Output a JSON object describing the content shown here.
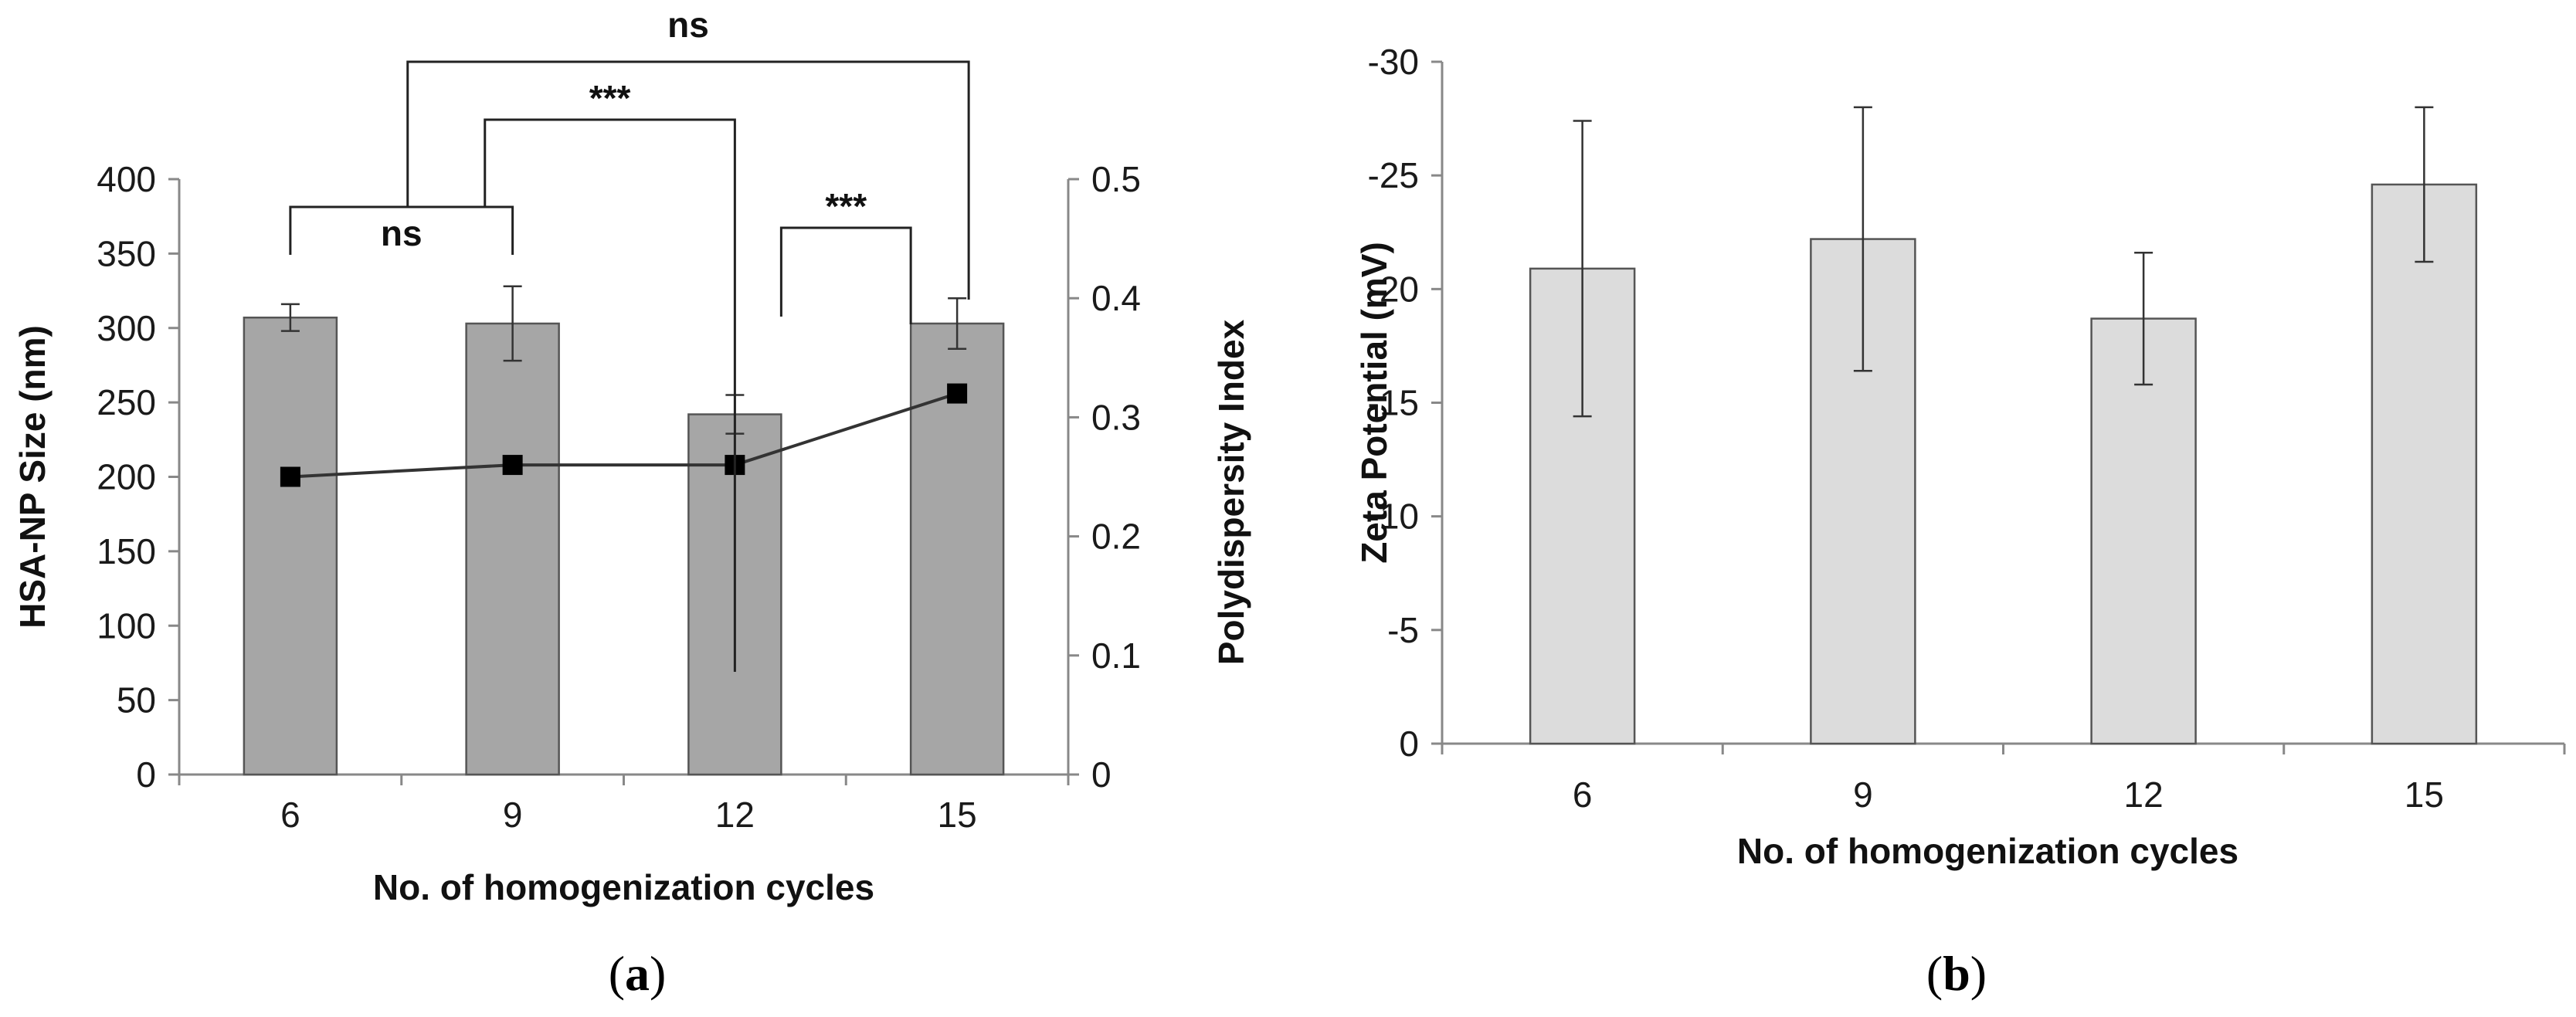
{
  "chart_data": [
    {
      "type": "bar",
      "panel": "(a)",
      "panel_label_open": "(",
      "panel_label_letter": "a",
      "panel_label_close": ")",
      "categories": [
        "6",
        "9",
        "12",
        "15"
      ],
      "xlabel": "No. of homogenization cycles",
      "ylabel": "HSA-NP Size (nm)",
      "ylabel_right": "Polydispersity Index",
      "ylim": [
        0,
        400
      ],
      "yticks": [
        "0",
        "50",
        "100",
        "150",
        "200",
        "250",
        "300",
        "350",
        "400"
      ],
      "ylim_right": [
        0,
        0.5
      ],
      "yticks_right": [
        "0",
        "0.1",
        "0.2",
        "0.3",
        "0.4",
        "0.5"
      ],
      "series": [
        {
          "name": "HSA-NP Size",
          "kind": "bar",
          "axis": "left",
          "values": [
            307,
            303,
            242,
            303
          ],
          "errors": [
            9,
            25,
            13,
            17
          ]
        },
        {
          "name": "Polydispersity Index",
          "kind": "line",
          "axis": "right",
          "values": [
            0.25,
            0.26,
            0.26,
            0.32
          ]
        }
      ],
      "annotations": [
        {
          "text": "ns",
          "from": "6",
          "to": "9"
        },
        {
          "text": "***",
          "from": "12",
          "to": "15"
        },
        {
          "text": "***",
          "from": "6-9",
          "to": "12"
        },
        {
          "text": "ns",
          "from": "6-9",
          "to": "15"
        }
      ],
      "colors": {
        "bar": "#a6a6a6",
        "line": "#333333"
      }
    },
    {
      "type": "bar",
      "panel": "(b)",
      "panel_label_open": "(",
      "panel_label_letter": "b",
      "panel_label_close": ")",
      "categories": [
        "6",
        "9",
        "12",
        "15"
      ],
      "xlabel": "No. of homogenization cycles",
      "ylabel": "Zeta Potential (mV)",
      "ylim": [
        0,
        -30
      ],
      "yticks": [
        "0",
        "-5",
        "-10",
        "-15",
        "-20",
        "-25",
        "-30"
      ],
      "series": [
        {
          "name": "Zeta Potential",
          "kind": "bar",
          "values": [
            -20.9,
            -22.2,
            -18.7,
            -24.6
          ],
          "errors": [
            6.5,
            5.8,
            2.9,
            3.4
          ]
        }
      ],
      "colors": {
        "bar": "#dcdcdc"
      }
    }
  ]
}
